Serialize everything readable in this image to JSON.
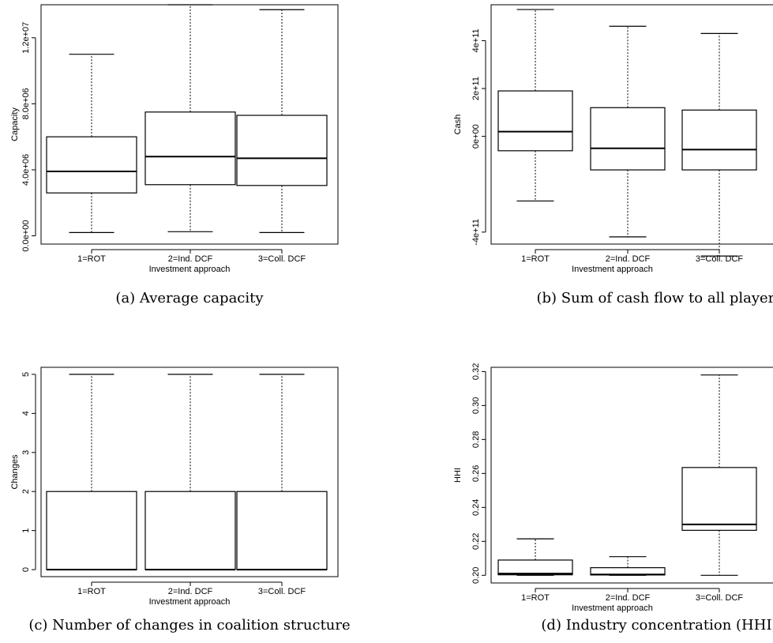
{
  "chart_data": [
    {
      "type": "boxplot",
      "caption": "(a) Average capacity",
      "xlabel": "Investment approach",
      "ylabel": "Capacity",
      "categories": [
        "1=ROT",
        "2=Ind. DCF",
        "3=Coll. DCF"
      ],
      "ylim": [
        -500000,
        14000000
      ],
      "yticks": [
        0,
        4000000,
        8000000,
        12000000
      ],
      "ytick_labels": [
        "0.0e+00",
        "4.0e+06",
        "8.0e+06",
        "1.2e+07"
      ],
      "boxes": [
        {
          "min": 200000,
          "q1": 2600000,
          "median": 3900000,
          "q3": 6000000,
          "max": 11000000
        },
        {
          "min": 250000,
          "q1": 3100000,
          "median": 4800000,
          "q3": 7500000,
          "max": 14000000
        },
        {
          "min": 200000,
          "q1": 3050000,
          "median": 4700000,
          "q3": 7300000,
          "max": 13700000
        }
      ]
    },
    {
      "type": "boxplot",
      "caption": "(b) Sum of cash flow to all players",
      "xlabel": "Investment approach",
      "ylabel": "Cash",
      "categories": [
        "1=ROT",
        "2=Ind. DCF",
        "3=Coll. DCF"
      ],
      "ylim": [
        -450000000000,
        550000000000
      ],
      "yticks": [
        -400000000000,
        0,
        200000000000,
        400000000000
      ],
      "ytick_labels": [
        "-4e+11",
        "0e+00",
        "2e+11",
        "4e+11"
      ],
      "boxes": [
        {
          "min": -270000000000,
          "q1": -60000000000,
          "median": 20000000000,
          "q3": 190000000000,
          "max": 530000000000
        },
        {
          "min": -420000000000,
          "q1": -140000000000,
          "median": -50000000000,
          "q3": 120000000000,
          "max": 460000000000
        },
        {
          "min": -500000000000,
          "q1": -140000000000,
          "median": -55000000000,
          "q3": 110000000000,
          "max": 430000000000
        }
      ]
    },
    {
      "type": "boxplot",
      "caption": "(c) Number of changes in coalition structure",
      "xlabel": "Investment approach",
      "ylabel": "Changes",
      "categories": [
        "1=ROT",
        "2=Ind. DCF",
        "3=Coll. DCF"
      ],
      "ylim": [
        -0.18,
        5.18
      ],
      "yticks": [
        0,
        1,
        2,
        3,
        4,
        5
      ],
      "ytick_labels": [
        "0",
        "1",
        "2",
        "3",
        "4",
        "5"
      ],
      "boxes": [
        {
          "min": 0,
          "q1": 0,
          "median": 0,
          "q3": 2,
          "max": 5
        },
        {
          "min": 0,
          "q1": 0,
          "median": 0,
          "q3": 2,
          "max": 5
        },
        {
          "min": 0,
          "q1": 0,
          "median": 0,
          "q3": 2,
          "max": 5
        }
      ]
    },
    {
      "type": "boxplot",
      "caption": "(d) Industry concentration (HHI)",
      "xlabel": "Investment approach",
      "ylabel": "HHI",
      "categories": [
        "1=ROT",
        "2=Ind. DCF",
        "3=Coll. DCF"
      ],
      "ylim": [
        0.1955,
        0.3225
      ],
      "yticks": [
        0.2,
        0.22,
        0.24,
        0.26,
        0.28,
        0.3,
        0.32
      ],
      "ytick_labels": [
        "0.20",
        "0.22",
        "0.24",
        "0.26",
        "0.28",
        "0.30",
        "0.32"
      ],
      "boxes": [
        {
          "min": 0.2,
          "q1": 0.2003,
          "median": 0.201,
          "q3": 0.209,
          "max": 0.2215
        },
        {
          "min": 0.2,
          "q1": 0.2002,
          "median": 0.2005,
          "q3": 0.2045,
          "max": 0.211
        },
        {
          "min": 0.2,
          "q1": 0.2265,
          "median": 0.23,
          "q3": 0.2635,
          "max": 0.318
        }
      ]
    }
  ]
}
